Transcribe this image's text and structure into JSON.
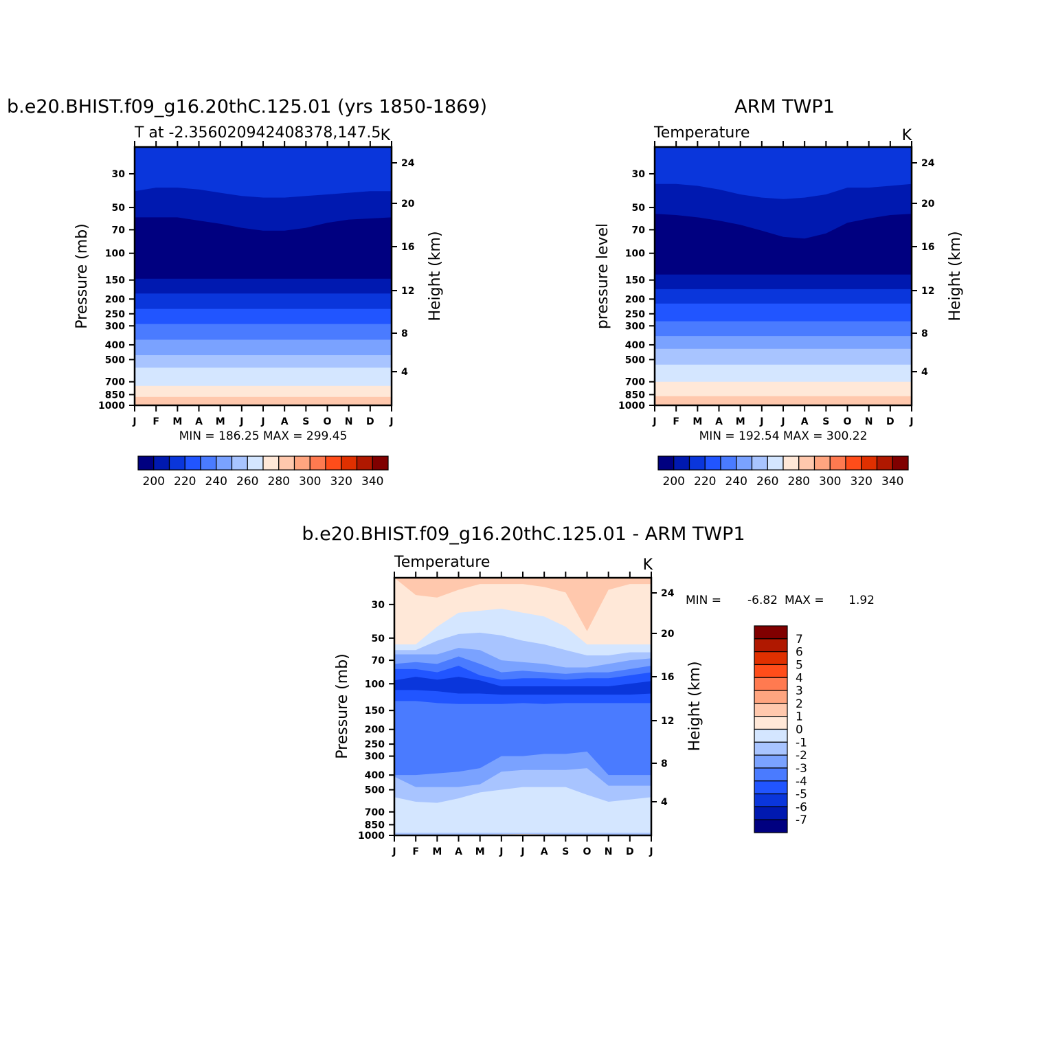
{
  "colors": {
    "abs_levels": [
      "#000080",
      "#0019b0",
      "#0a36db",
      "#2155ff",
      "#4a7bff",
      "#7aa2ff",
      "#a8c4ff",
      "#d4e6ff",
      "#ffe8d8",
      "#ffc8ad",
      "#ffa580",
      "#ff7a50",
      "#ff4d1a",
      "#e03000",
      "#b01800",
      "#800000"
    ],
    "diff_levels": [
      "#000080",
      "#0019b0",
      "#0a36db",
      "#2155ff",
      "#4a7bff",
      "#7aa2ff",
      "#a8c4ff",
      "#d4e6ff",
      "#ffe8d8",
      "#ffc8ad",
      "#ffa580",
      "#ff7a50",
      "#ff4d1a",
      "#e03000",
      "#b01800",
      "#800000"
    ]
  },
  "chart_data": [
    {
      "type": "heatmap",
      "title": "b.e20.BHIST.f09_g16.20thC.125.01 (yrs 1850-1869)",
      "subtitle_left": "T at -2.356020942408378,147.5",
      "subtitle_right": "K",
      "xlabel": "",
      "ylabel": "Pressure (mb)",
      "ylabel_right": "Height (km)",
      "x_ticks": [
        "J",
        "F",
        "M",
        "A",
        "M",
        "J",
        "J",
        "A",
        "S",
        "O",
        "N",
        "D",
        "J"
      ],
      "y_ticks": [
        30,
        50,
        70,
        100,
        150,
        200,
        250,
        300,
        400,
        500,
        700,
        850,
        1000
      ],
      "y_ticks_right": [
        24,
        20,
        16,
        12,
        8,
        4
      ],
      "y_log": true,
      "ylim": [
        1000,
        20
      ],
      "stats": "MIN = 186.25 MAX = 299.45",
      "colorbar_labels": [
        "200",
        "220",
        "240",
        "260",
        "280",
        "300",
        "320",
        "340"
      ],
      "bands": [
        {
          "color_index": 2,
          "upper_pressure": 20
        },
        {
          "color_index": 1,
          "upper_pressure": [
            39,
            37,
            37,
            38,
            40,
            42,
            43,
            43,
            42,
            41,
            40,
            39,
            39
          ]
        },
        {
          "color_index": 0,
          "upper_pressure": [
            58,
            58,
            58,
            61,
            64,
            68,
            71,
            71,
            68,
            63,
            60,
            59,
            58
          ]
        },
        {
          "color_index": 1,
          "upper_pressure": 147
        },
        {
          "color_index": 2,
          "upper_pressure": 184
        },
        {
          "color_index": 3,
          "upper_pressure": 232
        },
        {
          "color_index": 4,
          "upper_pressure": 292
        },
        {
          "color_index": 5,
          "upper_pressure": 370
        },
        {
          "color_index": 6,
          "upper_pressure": 468
        },
        {
          "color_index": 7,
          "upper_pressure": 565
        },
        {
          "color_index": 8,
          "upper_pressure": 745
        },
        {
          "color_index": 9,
          "upper_pressure": 880
        }
      ]
    },
    {
      "type": "heatmap",
      "title": "ARM TWP1",
      "subtitle_left": "Temperature",
      "subtitle_right": "K",
      "xlabel": "",
      "ylabel": "pressure level",
      "ylabel_right": "Height (km)",
      "x_ticks": [
        "J",
        "F",
        "M",
        "A",
        "M",
        "J",
        "J",
        "A",
        "S",
        "O",
        "N",
        "D",
        "J"
      ],
      "y_ticks": [
        30,
        50,
        70,
        100,
        150,
        200,
        250,
        300,
        400,
        500,
        700,
        850,
        1000
      ],
      "y_ticks_right": [
        24,
        20,
        16,
        12,
        8,
        4
      ],
      "y_log": true,
      "ylim": [
        1000,
        20
      ],
      "stats": "MIN = 192.54 MAX = 300.22",
      "colorbar_labels": [
        "200",
        "220",
        "240",
        "260",
        "280",
        "300",
        "320",
        "340"
      ],
      "bands": [
        {
          "color_index": 2,
          "upper_pressure": 20
        },
        {
          "color_index": 1,
          "upper_pressure": [
            35,
            35,
            36,
            38,
            41,
            43,
            44,
            43,
            41,
            37,
            37,
            36,
            35
          ]
        },
        {
          "color_index": 0,
          "upper_pressure": [
            55,
            56,
            58,
            61,
            65,
            71,
            78,
            80,
            74,
            63,
            59,
            56,
            55
          ]
        },
        {
          "color_index": 1,
          "upper_pressure": 138
        },
        {
          "color_index": 2,
          "upper_pressure": 172
        },
        {
          "color_index": 3,
          "upper_pressure": 214
        },
        {
          "color_index": 4,
          "upper_pressure": 280
        },
        {
          "color_index": 5,
          "upper_pressure": 350
        },
        {
          "color_index": 6,
          "upper_pressure": 425
        },
        {
          "color_index": 7,
          "upper_pressure": 540
        },
        {
          "color_index": 8,
          "upper_pressure": 700
        },
        {
          "color_index": 9,
          "upper_pressure": 870
        }
      ]
    },
    {
      "type": "heatmap",
      "title": "b.e20.BHIST.f09_g16.20thC.125.01 - ARM TWP1",
      "subtitle_left": "Temperature",
      "subtitle_right": "K",
      "xlabel": "",
      "ylabel": "Pressure (mb)",
      "ylabel_right": "Height (km)",
      "x_ticks": [
        "J",
        "F",
        "M",
        "A",
        "M",
        "J",
        "J",
        "A",
        "S",
        "O",
        "N",
        "D",
        "J"
      ],
      "y_ticks": [
        30,
        50,
        70,
        100,
        150,
        200,
        250,
        300,
        400,
        500,
        700,
        850,
        1000
      ],
      "y_ticks_right": [
        24,
        20,
        16,
        12,
        8,
        4
      ],
      "y_log": true,
      "ylim": [
        1000,
        20
      ],
      "stats_min_label": "MIN =",
      "stats_min": "-6.82",
      "stats_max_label": "MAX =",
      "stats_max": "1.92",
      "colorbar_labels": [
        "7",
        "6",
        "5",
        "4",
        "3",
        "2",
        "1",
        "0",
        "-1",
        "-2",
        "-3",
        "-4",
        "-5",
        "-6",
        "-7"
      ],
      "bands": [
        {
          "color_index": 9,
          "upper_pressure": 20
        },
        {
          "color_index": 8,
          "upper_pressure": [
            20,
            26,
            27,
            24,
            22,
            22,
            22,
            23,
            25,
            45,
            24,
            22,
            22
          ]
        },
        {
          "color_index": 7,
          "upper_pressure": [
            55,
            55,
            42,
            34,
            33,
            32,
            34,
            36,
            42,
            55,
            55,
            55,
            55
          ]
        },
        {
          "color_index": 6,
          "upper_pressure": [
            60,
            60,
            52,
            47,
            46,
            48,
            52,
            55,
            60,
            65,
            65,
            62,
            62
          ]
        },
        {
          "color_index": 5,
          "upper_pressure": [
            64,
            64,
            64,
            58,
            60,
            70,
            72,
            74,
            78,
            78,
            74,
            70,
            68
          ]
        },
        {
          "color_index": 4,
          "upper_pressure": [
            74,
            72,
            74,
            66,
            74,
            84,
            82,
            84,
            86,
            84,
            84,
            80,
            76
          ]
        },
        {
          "color_index": 3,
          "upper_pressure": [
            80,
            80,
            84,
            76,
            88,
            94,
            92,
            92,
            94,
            92,
            92,
            88,
            84
          ]
        },
        {
          "color_index": 2,
          "upper_pressure": [
            95,
            90,
            94,
            90,
            95,
            104,
            104,
            104,
            104,
            104,
            104,
            100,
            96
          ]
        },
        {
          "color_index": 3,
          "upper_pressure": [
            110,
            110,
            112,
            116,
            116,
            118,
            118,
            118,
            118,
            118,
            118,
            118,
            116
          ]
        },
        {
          "color_index": 4,
          "upper_pressure": [
            130,
            130,
            134,
            136,
            136,
            136,
            134,
            136,
            134,
            134,
            134,
            134,
            134
          ]
        },
        {
          "color_index": 5,
          "upper_pressure": [
            400,
            400,
            390,
            380,
            360,
            300,
            300,
            290,
            290,
            280,
            400,
            400,
            400
          ]
        },
        {
          "color_index": 6,
          "upper_pressure": [
            410,
            480,
            480,
            480,
            460,
            380,
            370,
            370,
            370,
            360,
            470,
            470,
            470
          ]
        },
        {
          "color_index": 7,
          "upper_pressure": [
            560,
            600,
            610,
            570,
            520,
            500,
            480,
            480,
            480,
            540,
            600,
            580,
            560
          ]
        },
        {
          "color_index": 6,
          "upper_pressure": [
            960,
            960,
            960,
            960,
            960,
            960,
            960,
            960,
            960,
            960,
            960,
            960,
            960
          ]
        },
        {
          "color_index": 8,
          "upper_pressure": [
            990,
            990,
            990,
            990,
            990,
            985,
            980,
            985,
            990,
            990,
            990,
            990,
            990
          ]
        }
      ]
    }
  ]
}
